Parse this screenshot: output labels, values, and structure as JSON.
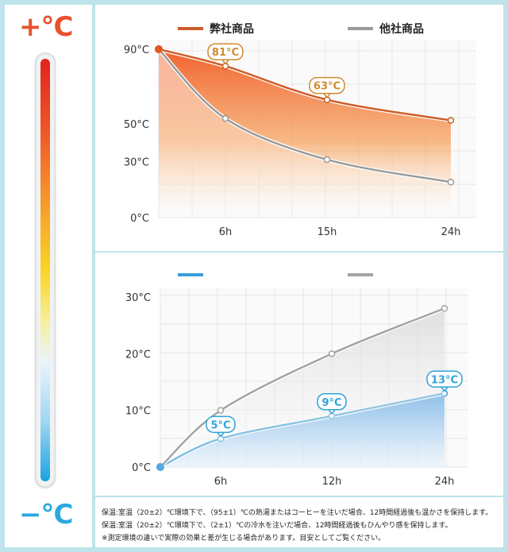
{
  "thermometer": {
    "hot_label": "+°C",
    "cold_label": "−°C"
  },
  "chart_data": [
    {
      "type": "area",
      "x": [
        "0h",
        "6h",
        "15h",
        "24h"
      ],
      "xticks": [
        "6h",
        "15h",
        "24h"
      ],
      "yticks": [
        "90°C",
        "50°C",
        "30°C",
        "0°C"
      ],
      "series": [
        {
          "name": "弊社商品",
          "color": "#d4632a",
          "values": [
            90,
            81,
            63,
            52
          ]
        },
        {
          "name": "他社商品",
          "color": "#777777",
          "values": [
            90,
            53,
            31,
            19
          ]
        }
      ],
      "annotations": [
        {
          "x": "6h",
          "label": "81°C"
        },
        {
          "x": "15h",
          "label": "63°C"
        }
      ],
      "ylim": [
        0,
        90
      ],
      "grid": true,
      "legend": "top"
    },
    {
      "type": "area",
      "x": [
        "0h",
        "6h",
        "12h",
        "24h"
      ],
      "xticks": [
        "6h",
        "12h",
        "24h"
      ],
      "yticks": [
        "30°C",
        "20°C",
        "10°C",
        "0°C"
      ],
      "series": [
        {
          "name": "",
          "color": "#3a9fd8",
          "values": [
            0,
            5,
            9,
            13
          ]
        },
        {
          "name": "",
          "color": "#888888",
          "values": [
            0,
            10,
            20,
            28
          ]
        }
      ],
      "annotations": [
        {
          "x": "6h",
          "label": "5°C"
        },
        {
          "x": "12h",
          "label": "9°C"
        },
        {
          "x": "24h",
          "label": "13°C"
        }
      ],
      "ylim": [
        0,
        30
      ],
      "grid": true,
      "legend": "top"
    }
  ],
  "notes": [
    "保温:室温（20±2）℃環境下で、（95±1）℃の熱湯またはコーヒーを注いだ場合、12時間経過後も温かさを保持します。",
    "保温:室温（20±2）℃環境下で、（2±1）℃の冷水を注いだ場合、12時間経過後もひんやり感を保持します。",
    "※測定環境の違いで実際の効果と差が生じる場合があります。目安としてご覧ください。"
  ]
}
